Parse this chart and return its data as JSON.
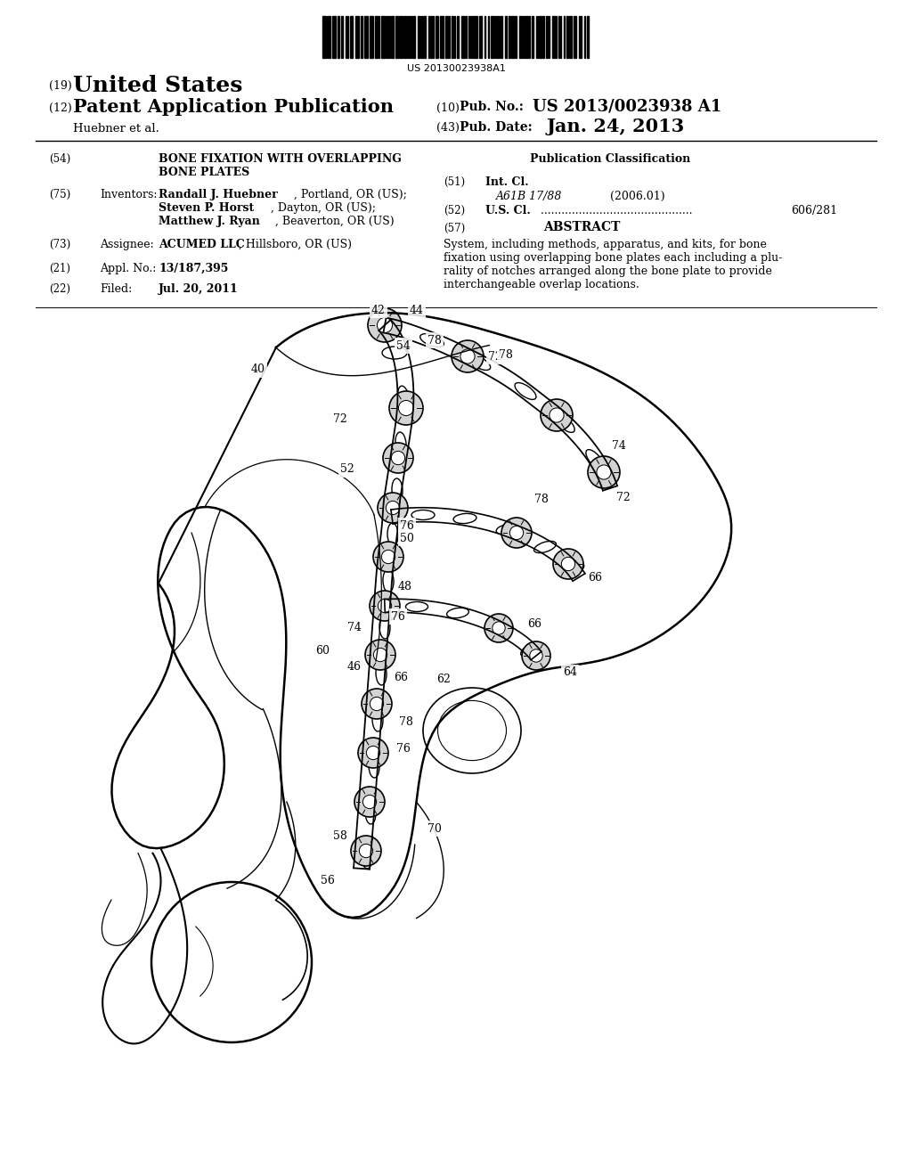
{
  "background_color": "#ffffff",
  "page_width": 10.24,
  "page_height": 13.2,
  "barcode_text": "US 20130023938A1",
  "header": {
    "number_19": "(19)",
    "united_states": "United States",
    "number_12": "(12)",
    "patent_app_pub": "Patent Application Publication",
    "number_10": "(10)",
    "pub_no_label": "Pub. No.:",
    "pub_no_value": "US 2013/0023938 A1",
    "inventors_name": "Huebner et al.",
    "number_43": "(43)",
    "pub_date_label": "Pub. Date:",
    "pub_date_value": "Jan. 24, 2013"
  },
  "left_column": {
    "title_num": "(54)",
    "title_line1": "BONE FIXATION WITH OVERLAPPING",
    "title_line2": "BONE PLATES",
    "inventors_num": "(75)",
    "inventors_label": "Inventors:",
    "inv1_bold": "Randall J. Huebner",
    "inv1_rest": ", Portland, OR (US);",
    "inv2_bold": "Steven P. Horst",
    "inv2_rest": ", Dayton, OR (US);",
    "inv3_bold": "Matthew J. Ryan",
    "inv3_rest": ", Beaverton, OR (US)",
    "assignee_num": "(73)",
    "assignee_label": "Assignee:",
    "assignee_bold": "ACUMED LLC",
    "assignee_rest": ", Hillsboro, OR (US)",
    "appl_num": "(21)",
    "appl_label": "Appl. No.:",
    "appl_value": "13/187,395",
    "filed_num": "(22)",
    "filed_label": "Filed:",
    "filed_value": "Jul. 20, 2011"
  },
  "right_column": {
    "pub_class_title": "Publication Classification",
    "int_cl_num": "(51)",
    "int_cl_label": "Int. Cl.",
    "int_cl_code": "A61B 17/88",
    "int_cl_year": "(2006.01)",
    "us_cl_num": "(52)",
    "us_cl_label": "U.S. Cl.",
    "us_cl_value": "606/281",
    "abstract_num": "(57)",
    "abstract_title": "ABSTRACT",
    "abstract_line1": "System, including methods, apparatus, and kits, for bone",
    "abstract_line2": "fixation using overlapping bone plates each including a plu-",
    "abstract_line3": "rality of notches arranged along the bone plate to provide",
    "abstract_line4": "interchangeable overlap locations."
  }
}
